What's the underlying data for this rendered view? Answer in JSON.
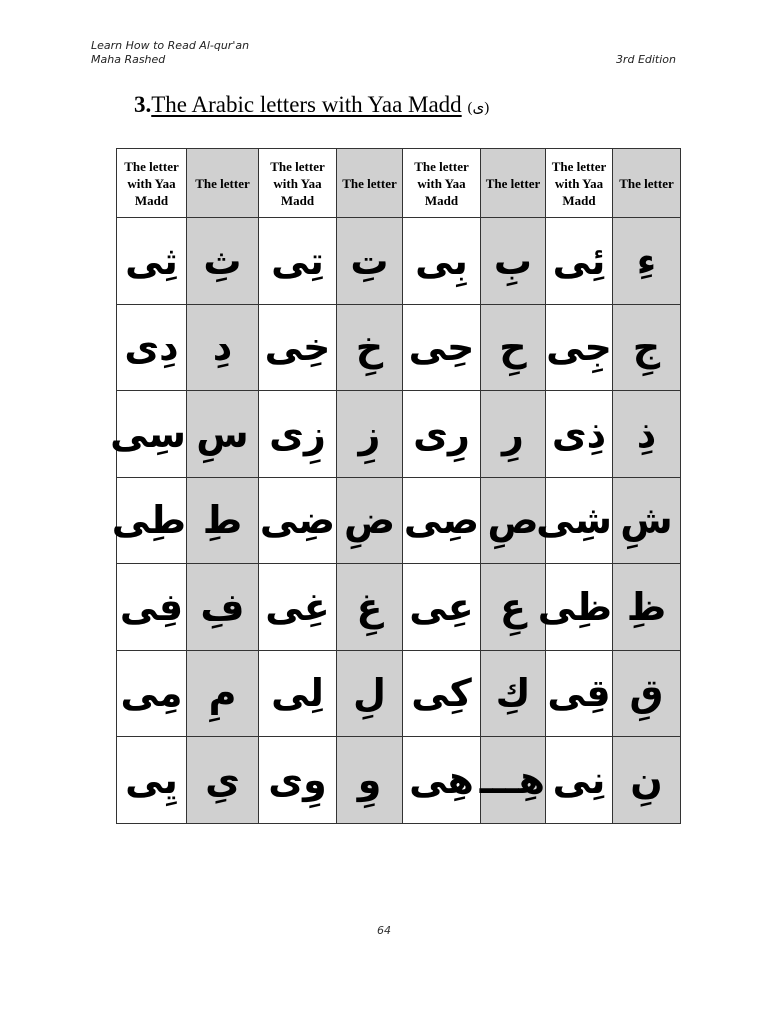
{
  "header": {
    "book_title": "Learn How to Read Al-qur'an",
    "author": "Maha Rashed",
    "edition": "3rd Edition"
  },
  "section": {
    "number": "3.",
    "title": "The Arabic letters with Yaa Madd",
    "symbol": "(ى)"
  },
  "table": {
    "shade_color": "#d0d0d0",
    "headers": [
      "The letter with Yaa Madd",
      "The letter",
      "The letter with Yaa Madd",
      "The letter",
      "The letter with Yaa Madd",
      "The letter",
      "The letter with Yaa Madd",
      "The letter"
    ],
    "rows": [
      [
        "ثِى",
        "ثِ",
        "تِى",
        "تِ",
        "بِى",
        "بِ",
        "ئِى",
        "ءِ"
      ],
      [
        "دِى",
        "دِ",
        "خِى",
        "خِ",
        "حِى",
        "حِ",
        "جِى",
        "جِ"
      ],
      [
        "سِى",
        "سِ",
        "زِى",
        "زِ",
        "رِى",
        "رِ",
        "ذِى",
        "ذِ"
      ],
      [
        "طِى",
        "طِ",
        "ضِى",
        "ضِ",
        "صِى",
        "صِ",
        "شِى",
        "شِ"
      ],
      [
        "فِى",
        "فِ",
        "غِى",
        "غِ",
        "عِى",
        "عِ",
        "ظِى",
        "ظِ"
      ],
      [
        "مِى",
        "مِ",
        "لِى",
        "لِ",
        "كِى",
        "كِ",
        "قِى",
        "قِ"
      ],
      [
        "يِى",
        "ىِ",
        "وِى",
        "وِ",
        "هِى",
        "هِـــ",
        "نِى",
        "نِ"
      ]
    ]
  },
  "footer": {
    "page_number": "64"
  }
}
